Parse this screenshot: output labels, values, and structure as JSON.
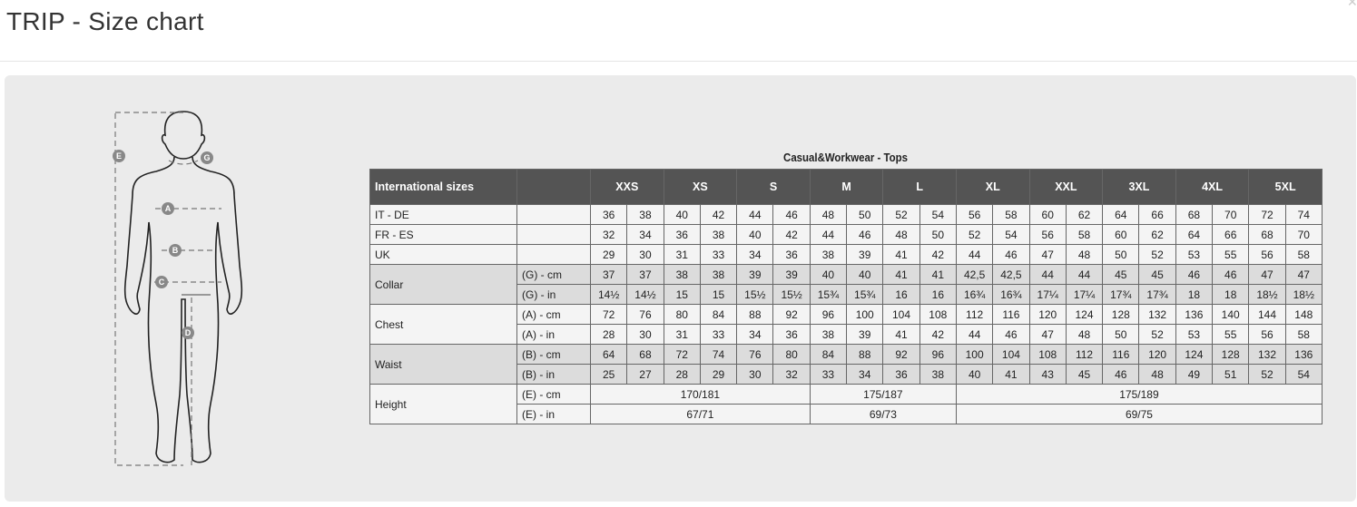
{
  "page": {
    "title": "TRIP - Size chart",
    "close_icon": "close-icon"
  },
  "figure": {
    "markers": [
      "A",
      "B",
      "C",
      "D",
      "E",
      "G"
    ]
  },
  "chart_data": {
    "type": "table",
    "title": "Casual&Workwear - Tops",
    "header": {
      "label": "International sizes",
      "sizes": [
        "XXS",
        "XS",
        "S",
        "M",
        "L",
        "XL",
        "XXL",
        "3XL",
        "4XL",
        "5XL"
      ]
    },
    "groups": [
      {
        "label": "IT - DE",
        "shade": "light",
        "rows": [
          {
            "unit": "",
            "values": [
              "36",
              "38",
              "40",
              "42",
              "44",
              "46",
              "48",
              "50",
              "52",
              "54",
              "56",
              "58",
              "60",
              "62",
              "64",
              "66",
              "68",
              "70",
              "72",
              "74"
            ]
          }
        ]
      },
      {
        "label": "FR - ES",
        "shade": "light",
        "rows": [
          {
            "unit": "",
            "values": [
              "32",
              "34",
              "36",
              "38",
              "40",
              "42",
              "44",
              "46",
              "48",
              "50",
              "52",
              "54",
              "56",
              "58",
              "60",
              "62",
              "64",
              "66",
              "68",
              "70"
            ]
          }
        ]
      },
      {
        "label": "UK",
        "shade": "light",
        "rows": [
          {
            "unit": "",
            "values": [
              "29",
              "30",
              "31",
              "33",
              "34",
              "36",
              "38",
              "39",
              "41",
              "42",
              "44",
              "46",
              "47",
              "48",
              "50",
              "52",
              "53",
              "55",
              "56",
              "58"
            ]
          }
        ]
      },
      {
        "label": "Collar",
        "shade": "dark",
        "rows": [
          {
            "unit": "(G) - cm",
            "values": [
              "37",
              "37",
              "38",
              "38",
              "39",
              "39",
              "40",
              "40",
              "41",
              "41",
              "42,5",
              "42,5",
              "44",
              "44",
              "45",
              "45",
              "46",
              "46",
              "47",
              "47"
            ]
          },
          {
            "unit": "(G)  - in",
            "values": [
              "14½",
              "14½",
              "15",
              "15",
              "15½",
              "15½",
              "15¾",
              "15¾",
              "16",
              "16",
              "16¾",
              "16¾",
              "17¼",
              "17¼",
              "17¾",
              "17¾",
              "18",
              "18",
              "18½",
              "18½"
            ]
          }
        ]
      },
      {
        "label": "Chest",
        "shade": "light",
        "rows": [
          {
            "unit": "(A) - cm",
            "values": [
              "72",
              "76",
              "80",
              "84",
              "88",
              "92",
              "96",
              "100",
              "104",
              "108",
              "112",
              "116",
              "120",
              "124",
              "128",
              "132",
              "136",
              "140",
              "144",
              "148"
            ]
          },
          {
            "unit": "(A) - in",
            "values": [
              "28",
              "30",
              "31",
              "33",
              "34",
              "36",
              "38",
              "39",
              "41",
              "42",
              "44",
              "46",
              "47",
              "48",
              "50",
              "52",
              "53",
              "55",
              "56",
              "58"
            ]
          }
        ]
      },
      {
        "label": "Waist",
        "shade": "dark",
        "rows": [
          {
            "unit": "(B) - cm",
            "values": [
              "64",
              "68",
              "72",
              "74",
              "76",
              "80",
              "84",
              "88",
              "92",
              "96",
              "100",
              "104",
              "108",
              "112",
              "116",
              "120",
              "124",
              "128",
              "132",
              "136"
            ]
          },
          {
            "unit": "(B) - in",
            "values": [
              "25",
              "27",
              "28",
              "29",
              "30",
              "32",
              "33",
              "34",
              "36",
              "38",
              "40",
              "41",
              "43",
              "45",
              "46",
              "48",
              "49",
              "51",
              "52",
              "54"
            ]
          }
        ]
      },
      {
        "label": "Height",
        "shade": "light",
        "rows": [
          {
            "unit": "(E) - cm",
            "spans": [
              {
                "cols": 6,
                "value": "170/181"
              },
              {
                "cols": 4,
                "value": "175/187"
              },
              {
                "cols": 10,
                "value": "175/189"
              }
            ]
          },
          {
            "unit": "(E) - in",
            "spans": [
              {
                "cols": 6,
                "value": "67/71"
              },
              {
                "cols": 4,
                "value": "69/73"
              },
              {
                "cols": 10,
                "value": "69/75"
              }
            ]
          }
        ]
      }
    ]
  }
}
